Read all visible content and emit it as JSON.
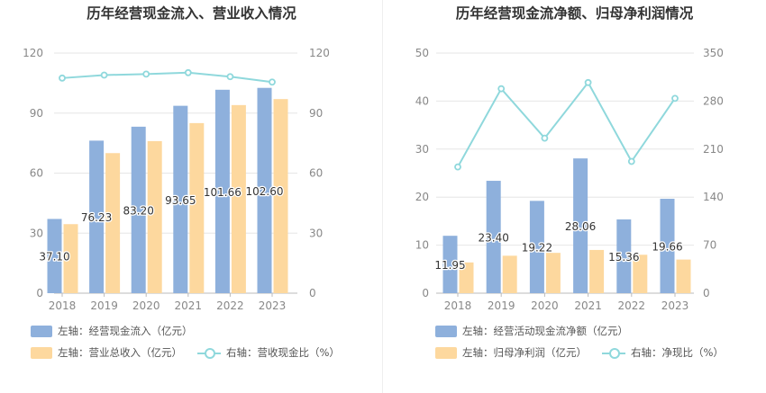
{
  "colors": {
    "bar1": "#8eb0dc",
    "bar2": "#fdd89e",
    "line": "#8fd8dc",
    "grid": "#e6e6e6",
    "axis": "#888888"
  },
  "chart_data": [
    {
      "type": "bar",
      "title": "历年经营现金流入、营业收入情况",
      "categories": [
        "2018",
        "2019",
        "2020",
        "2021",
        "2022",
        "2023"
      ],
      "y_left": {
        "ticks": [
          "0",
          "30",
          "60",
          "90",
          "120"
        ],
        "ylim": [
          0,
          120
        ]
      },
      "y_right": {
        "ticks": [
          "0",
          "30",
          "60",
          "90",
          "120"
        ],
        "ylim": [
          0,
          120
        ]
      },
      "series": [
        {
          "name": "左轴：经营现金流入（亿元）",
          "axis": "left",
          "kind": "bar",
          "values": [
            37.1,
            76.23,
            83.2,
            93.65,
            101.66,
            102.6
          ],
          "labels": [
            "37.10",
            "76.23",
            "83.20",
            "93.65",
            "101.66",
            "102.60"
          ]
        },
        {
          "name": "左轴：营业总收入（亿元）",
          "axis": "left",
          "kind": "bar",
          "values": [
            34.5,
            70,
            76,
            85,
            94,
            97
          ]
        },
        {
          "name": "右轴：营收现金比（%）",
          "axis": "right",
          "kind": "line",
          "values": [
            107.5,
            109,
            109.5,
            110.2,
            108.2,
            105.5
          ]
        }
      ]
    },
    {
      "type": "bar",
      "title": "历年经营现金流净额、归母净利润情况",
      "categories": [
        "2018",
        "2019",
        "2020",
        "2021",
        "2022",
        "2023"
      ],
      "y_left": {
        "ticks": [
          "0",
          "10",
          "20",
          "30",
          "40",
          "50"
        ],
        "ylim": [
          0,
          50
        ]
      },
      "y_right": {
        "ticks": [
          "0",
          "70",
          "140",
          "210",
          "280",
          "350"
        ],
        "ylim": [
          0,
          350
        ]
      },
      "series": [
        {
          "name": "左轴：经营活动现金流净额（亿元）",
          "axis": "left",
          "kind": "bar",
          "values": [
            11.95,
            23.4,
            19.22,
            28.06,
            15.36,
            19.66
          ],
          "labels": [
            "11.95",
            "23.40",
            "19.22",
            "28.06",
            "15.36",
            "19.66"
          ]
        },
        {
          "name": "左轴：归母净利润（亿元）",
          "axis": "left",
          "kind": "bar",
          "values": [
            6.4,
            7.8,
            8.4,
            9.0,
            8.0,
            7.0
          ]
        },
        {
          "name": "右轴：净现比（%）",
          "axis": "right",
          "kind": "line",
          "values": [
            184,
            298,
            226,
            307,
            192,
            284
          ]
        }
      ]
    }
  ]
}
